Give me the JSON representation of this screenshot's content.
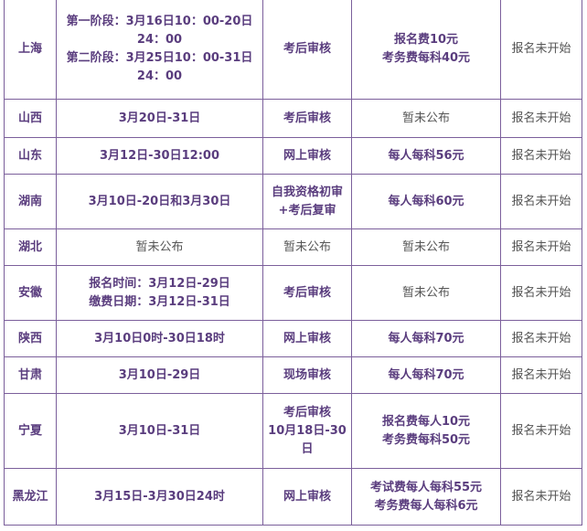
{
  "rows": [
    {
      "province": "上海",
      "dates": [
        "第一阶段：3月16日10：00-20日24：00",
        "第二阶段：3月25日10：00-31日24：00"
      ],
      "review": [
        "考后审核"
      ],
      "fee": [
        "报名费10元",
        "考务费每科40元"
      ],
      "status": "报名未开始",
      "h": 110
    },
    {
      "province": "山西",
      "dates": [
        "3月20日-31日"
      ],
      "review": [
        "考后审核"
      ],
      "fee": [
        "暂未公布"
      ],
      "feeGray": true,
      "status": "报名未开始",
      "h": 42
    },
    {
      "province": "山东",
      "dates": [
        "3月12日-30日12:00"
      ],
      "review": [
        "网上审核"
      ],
      "fee": [
        "每人每科56元"
      ],
      "status": "报名未开始",
      "h": 40
    },
    {
      "province": "湖南",
      "dates": [
        "3月10日-20日和3月30日"
      ],
      "review": [
        "自我资格初审",
        "+考后复审"
      ],
      "fee": [
        "每人每科60元"
      ],
      "status": "报名未开始",
      "h": 60
    },
    {
      "province": "湖北",
      "dates": [
        "暂未公布"
      ],
      "datesGray": true,
      "review": [
        "暂未公布"
      ],
      "reviewGray": true,
      "fee": [
        "暂未公布"
      ],
      "feeGray": true,
      "status": "报名未开始",
      "h": 40
    },
    {
      "province": "安徽",
      "dates": [
        "报名时间：3月12日-29日",
        "缴费日期：3月12日-31日"
      ],
      "review": [
        "考后审核"
      ],
      "fee": [
        "暂未公布"
      ],
      "feeGray": true,
      "status": "报名未开始",
      "h": 60
    },
    {
      "province": "陕西",
      "dates": [
        "3月10日0时-30日18时"
      ],
      "review": [
        "网上审核"
      ],
      "fee": [
        "每人每科70元"
      ],
      "status": "报名未开始",
      "h": 40
    },
    {
      "province": "甘肃",
      "dates": [
        "3月10日-29日"
      ],
      "review": [
        "现场审核"
      ],
      "fee": [
        "每人每科70元"
      ],
      "status": "报名未开始",
      "h": 40
    },
    {
      "province": "宁夏",
      "dates": [
        "3月10日-31日"
      ],
      "review": [
        "考后审核",
        "10月18日-30日"
      ],
      "fee": [
        "报名费每人10元",
        "考务费每科50元"
      ],
      "status": "报名未开始",
      "h": 82
    },
    {
      "province": "黑龙江",
      "dates": [
        "3月15日-3月30日24时"
      ],
      "review": [
        "网上审核"
      ],
      "fee": [
        "考试费每人每科55元",
        "考务费每人每科6元"
      ],
      "status": "报名未开始",
      "h": 62
    }
  ]
}
